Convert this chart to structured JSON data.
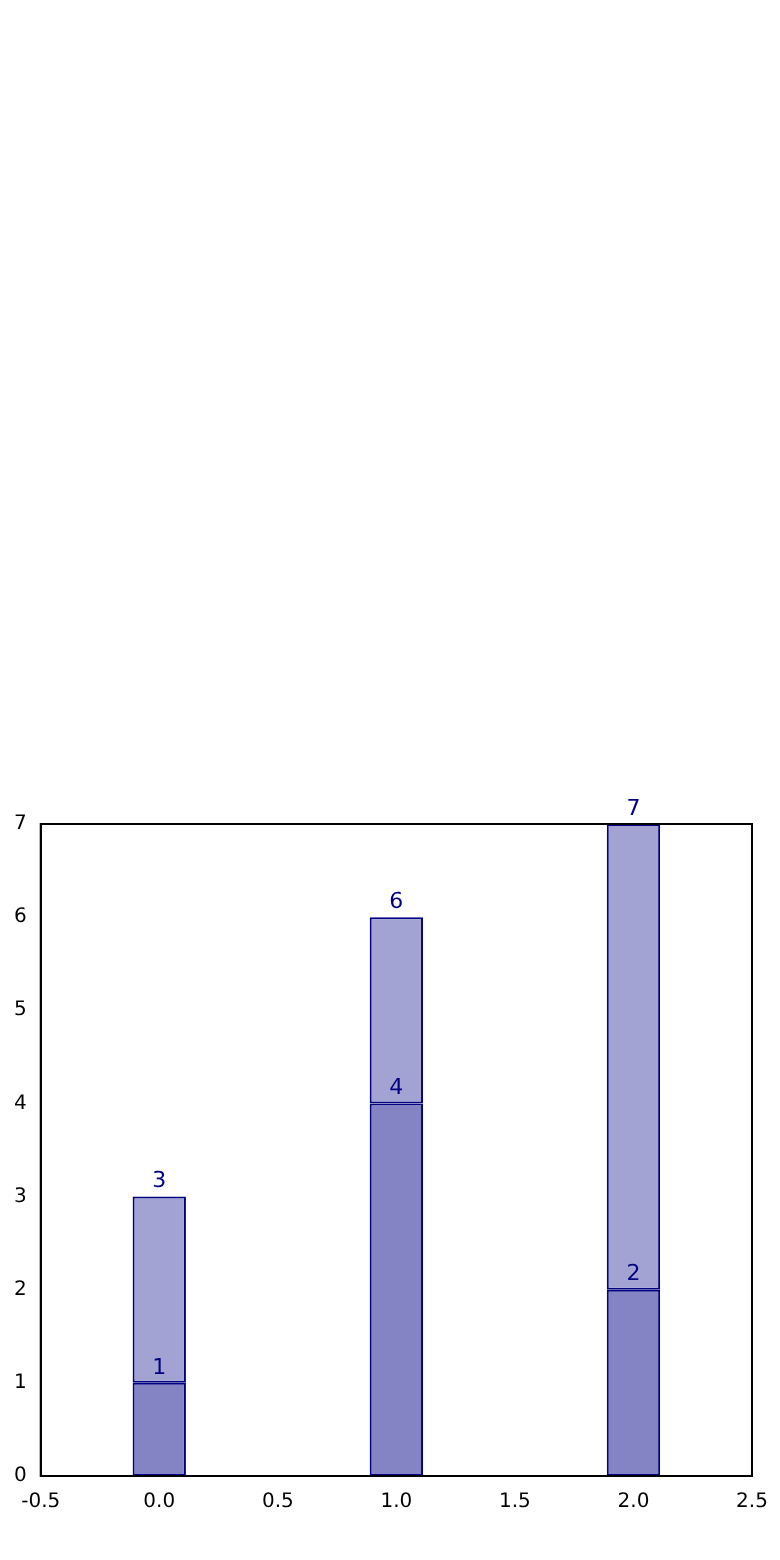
{
  "chart_data": {
    "type": "bar",
    "stacked": true,
    "x": [
      0,
      1,
      2
    ],
    "series": [
      {
        "color": "#8484c4",
        "values": [
          1,
          4,
          2
        ],
        "value_labels": [
          "1",
          "4",
          "2"
        ]
      },
      {
        "color": "#a3a3d3",
        "values": [
          2,
          2,
          5
        ]
      }
    ],
    "totals": [
      "3",
      "6",
      "7"
    ],
    "xlim": [
      -0.5,
      2.5
    ],
    "xticks": [
      -0.5,
      {
        "value": 0,
        "label": "0.0"
      },
      0.5,
      {
        "value": 1,
        "label": "1.0"
      },
      1.5,
      {
        "value": 2,
        "label": "2.0"
      },
      2.5
    ],
    "ylim": [
      0,
      7
    ],
    "yticks": [
      0,
      1,
      2,
      3,
      4,
      5,
      6,
      7
    ],
    "grid": false,
    "legend": false
  }
}
